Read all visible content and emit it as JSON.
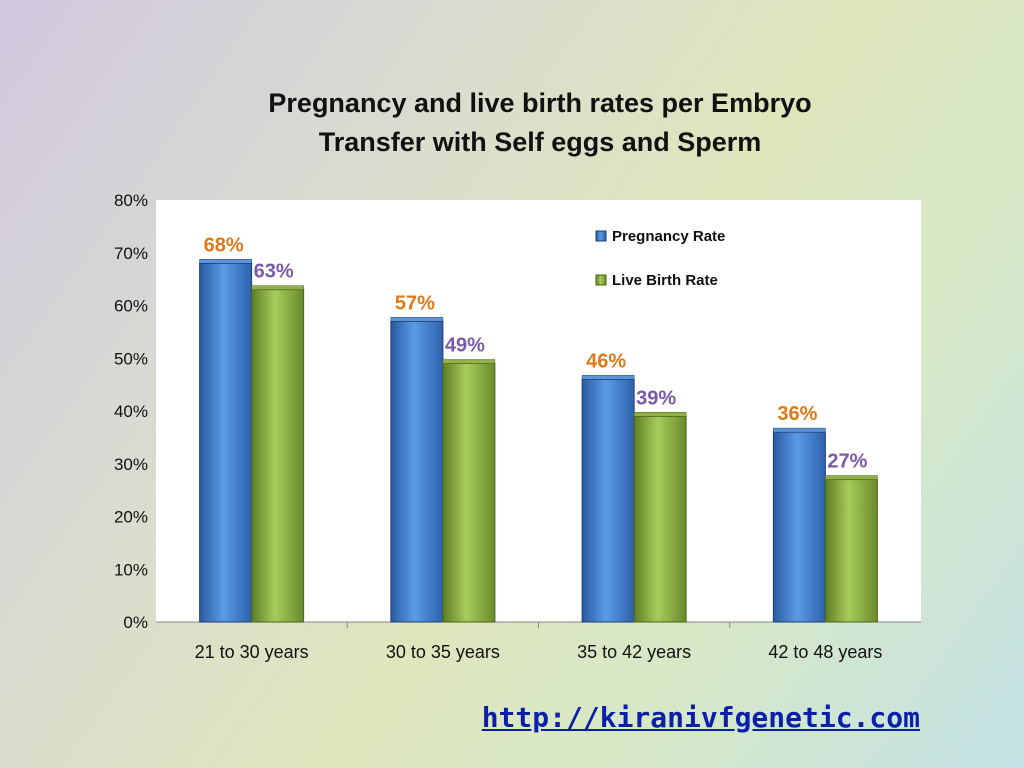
{
  "chart_data": {
    "type": "bar",
    "title_lines": [
      "Pregnancy and live birth rates per Embryo",
      "Transfer with Self eggs and Sperm"
    ],
    "categories": [
      "21 to 30 years",
      "30 to 35 years",
      "35 to 42 years",
      "42 to 48 years"
    ],
    "series": [
      {
        "name": "Pregnancy Rate",
        "values": [
          68,
          57,
          46,
          36
        ],
        "labels": [
          "68%",
          "57%",
          "46%",
          "36%"
        ],
        "color": "#3a74c4",
        "label_color": "#e07818"
      },
      {
        "name": "Live Birth Rate",
        "values": [
          63,
          49,
          39,
          27
        ],
        "labels": [
          "63%",
          "49%",
          "39%",
          "27%"
        ],
        "color": "#7ea43a",
        "label_color": "#7a5aa8"
      }
    ],
    "ylim": [
      0,
      80
    ],
    "yticks": [
      "0%",
      "10%",
      "20%",
      "30%",
      "40%",
      "50%",
      "60%",
      "70%",
      "80%"
    ],
    "xlabel": "",
    "ylabel": "",
    "grid": false,
    "legend": "top-right"
  },
  "footer": {
    "link_text": "http://kiranivfgenetic.com"
  }
}
